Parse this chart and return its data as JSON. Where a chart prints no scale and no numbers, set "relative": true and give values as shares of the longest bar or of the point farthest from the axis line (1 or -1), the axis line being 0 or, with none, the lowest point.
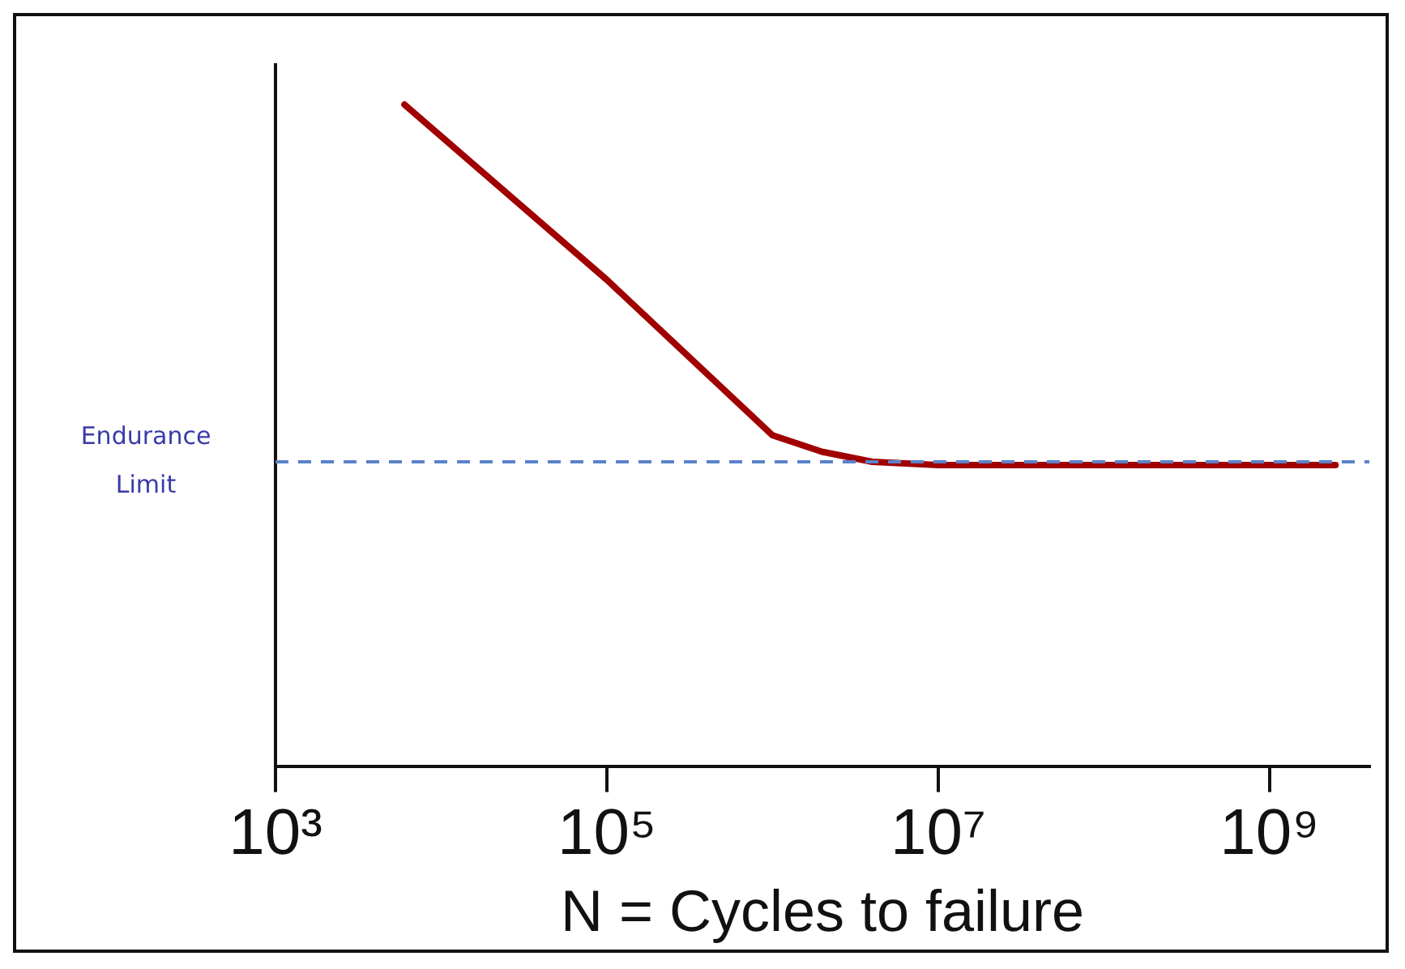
{
  "chart_data": {
    "type": "line",
    "xlabel": "N = Cycles to failure",
    "relative": true,
    "log": "x",
    "xlim": [
      1000,
      4000000000
    ],
    "xticks": [
      {
        "value": 1000,
        "label": "10³"
      },
      {
        "value": 100000,
        "label": "10⁵"
      },
      {
        "value": 10000000,
        "label": "10⁷"
      },
      {
        "value": 1000000000,
        "label": "10⁹"
      }
    ],
    "tick_labels": "x",
    "grid": false,
    "legend": false,
    "marker": "none",
    "line_style": "solid",
    "series": [
      {
        "color": "#a00000",
        "x": [
          6000,
          100000,
          1000000,
          2000000,
          4000000,
          10000000,
          2500000000
        ],
        "values": [
          1,
          0.735,
          0.5,
          0.475,
          0.46,
          0.455,
          0.455
        ]
      }
    ],
    "ref_lines": [
      {
        "axis": "y",
        "value": 0.46,
        "label": "Endurance Limit",
        "color": "#5b82c8",
        "line_style": "dashed"
      }
    ]
  }
}
